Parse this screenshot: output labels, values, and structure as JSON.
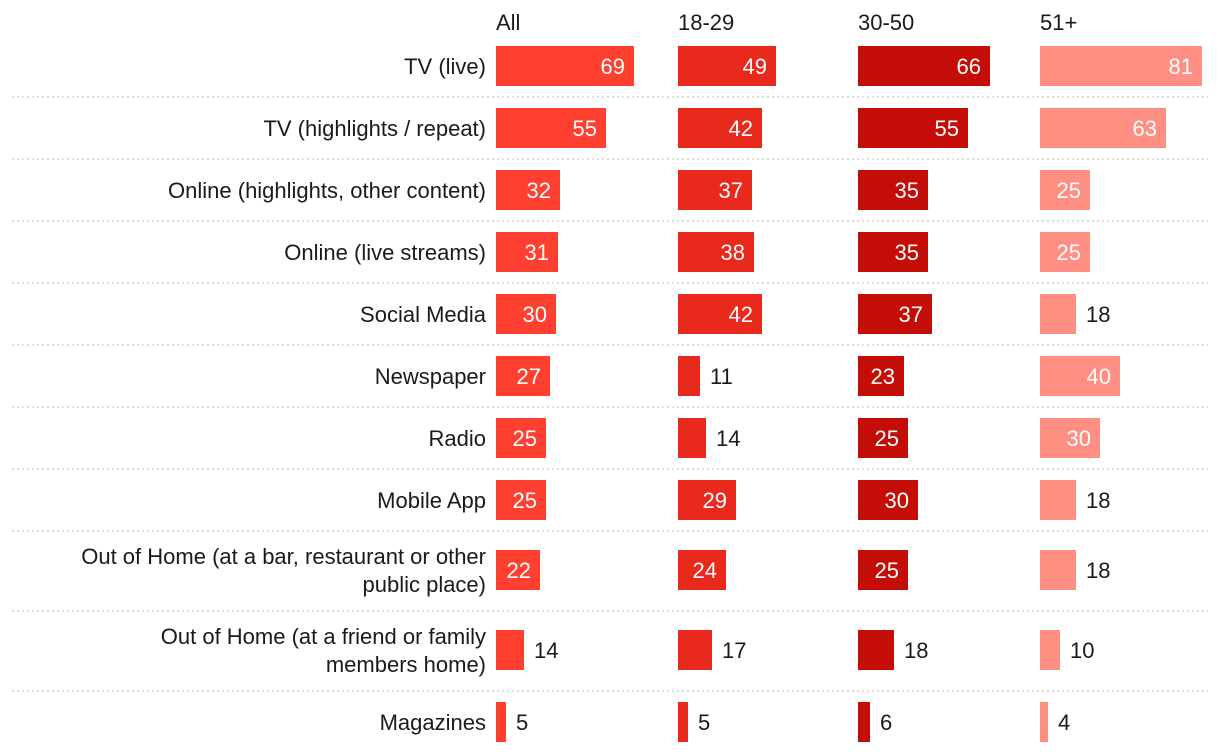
{
  "chart_data": {
    "type": "bar",
    "orientation": "horizontal",
    "layout": "small-multiples",
    "title": "",
    "xlabel": "",
    "ylabel": "",
    "xlim": [
      0,
      100
    ],
    "grid": false,
    "legend": "none",
    "categories": [
      [
        "TV (live)"
      ],
      [
        "TV (highlights / repeat)"
      ],
      [
        "Online (highlights, other content)"
      ],
      [
        "Online (live streams)"
      ],
      [
        "Social Media"
      ],
      [
        "Newspaper"
      ],
      [
        "Radio"
      ],
      [
        "Mobile App"
      ],
      [
        "Out of Home (at a bar, restaurant or other",
        "public place)"
      ],
      [
        "Out of Home (at a friend or family",
        "members home)"
      ],
      [
        "Magazines"
      ]
    ],
    "series": [
      {
        "name": "All",
        "color": "#ff3f2f",
        "values": [
          69,
          55,
          32,
          31,
          30,
          27,
          25,
          25,
          22,
          14,
          5
        ]
      },
      {
        "name": "18-29",
        "color": "#e8291c",
        "values": [
          49,
          42,
          37,
          38,
          42,
          11,
          14,
          29,
          24,
          17,
          5
        ]
      },
      {
        "name": "30-50",
        "color": "#c40d06",
        "values": [
          66,
          55,
          35,
          35,
          37,
          23,
          25,
          30,
          25,
          18,
          6
        ]
      },
      {
        "name": "51+",
        "color": "#ff8f82",
        "values": [
          81,
          63,
          25,
          25,
          18,
          40,
          30,
          18,
          18,
          10,
          4
        ]
      }
    ]
  }
}
